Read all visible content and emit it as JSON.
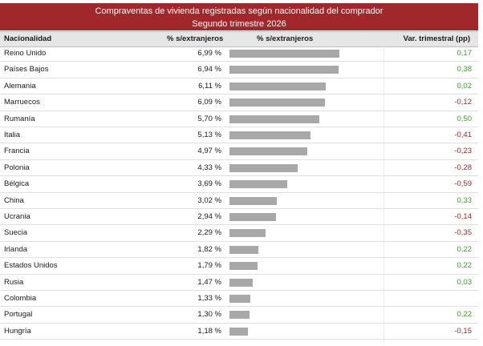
{
  "title": {
    "line1": "Compraventas de vivienda registradas según nacionalidad del comprador",
    "line2": "Segundo trimestre 2026"
  },
  "colors": {
    "header_bg": "#a0282a",
    "bar": "#a8a8a8",
    "positive": "#3c9a2d",
    "negative": "#a0282a"
  },
  "chart_data": {
    "type": "table",
    "title": "Compraventas de vivienda registradas según nacionalidad del comprador",
    "subtitle": "Segundo trimestre 2026",
    "columns": [
      "Nacionalidad",
      "% s/extranjeros",
      "% s/extranjeros",
      "Var. trimestral (pp)"
    ],
    "rows": [
      {
        "nationality": "Reino Unido",
        "pct_label": "6,99 %",
        "pct": 6.99,
        "var_label": "0,17",
        "var": 0.17
      },
      {
        "nationality": "Países Bajos",
        "pct_label": "6,94 %",
        "pct": 6.94,
        "var_label": "0,38",
        "var": 0.38
      },
      {
        "nationality": "Alemania",
        "pct_label": "6,11 %",
        "pct": 6.11,
        "var_label": "0,02",
        "var": 0.02
      },
      {
        "nationality": "Marruecos",
        "pct_label": "6,09 %",
        "pct": 6.09,
        "var_label": "-0,12",
        "var": -0.12
      },
      {
        "nationality": "Rumanía",
        "pct_label": "5,70 %",
        "pct": 5.7,
        "var_label": "0,50",
        "var": 0.5
      },
      {
        "nationality": "Italia",
        "pct_label": "5,13 %",
        "pct": 5.13,
        "var_label": "-0,41",
        "var": -0.41
      },
      {
        "nationality": "Francia",
        "pct_label": "4,97 %",
        "pct": 4.97,
        "var_label": "-0,23",
        "var": -0.23
      },
      {
        "nationality": "Polonia",
        "pct_label": "4,33 %",
        "pct": 4.33,
        "var_label": "-0,28",
        "var": -0.28
      },
      {
        "nationality": "Bélgica",
        "pct_label": "3,69 %",
        "pct": 3.69,
        "var_label": "-0,59",
        "var": -0.59
      },
      {
        "nationality": "China",
        "pct_label": "3,02 %",
        "pct": 3.02,
        "var_label": "0,33",
        "var": 0.33
      },
      {
        "nationality": "Ucrania",
        "pct_label": "2,94 %",
        "pct": 2.94,
        "var_label": "-0,14",
        "var": -0.14
      },
      {
        "nationality": "Suecia",
        "pct_label": "2,29 %",
        "pct": 2.29,
        "var_label": "-0,35",
        "var": -0.35
      },
      {
        "nationality": "Irlanda",
        "pct_label": "1,82 %",
        "pct": 1.82,
        "var_label": "0,22",
        "var": 0.22
      },
      {
        "nationality": "Estados Unidos",
        "pct_label": "1,79 %",
        "pct": 1.79,
        "var_label": "0,22",
        "var": 0.22
      },
      {
        "nationality": "Rusia",
        "pct_label": "1,47 %",
        "pct": 1.47,
        "var_label": "0,03",
        "var": 0.03
      },
      {
        "nationality": "Colombia",
        "pct_label": "1,33 %",
        "pct": 1.33,
        "var_label": "",
        "var": null
      },
      {
        "nationality": "Portugal",
        "pct_label": "1,30 %",
        "pct": 1.3,
        "var_label": "0,22",
        "var": 0.22
      },
      {
        "nationality": "Hungría",
        "pct_label": "1,18 %",
        "pct": 1.18,
        "var_label": "-0,15",
        "var": -0.15
      }
    ]
  }
}
